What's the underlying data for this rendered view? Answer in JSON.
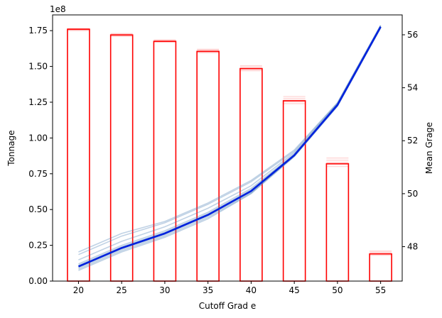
{
  "chart_data": {
    "type": "bar+line",
    "title": "",
    "xlabel": "Cutoff Grad e",
    "ylabel_left": "Tonnage",
    "ylabel_right": "Mean Grage",
    "y_left_offset_label": "1e8",
    "categories": [
      20,
      25,
      30,
      35,
      40,
      45,
      50,
      55
    ],
    "xlim": [
      17,
      57.5
    ],
    "y_left": {
      "lim": [
        0,
        1.86
      ],
      "ticks": [
        0.0,
        0.25,
        0.5,
        0.75,
        1.0,
        1.25,
        1.5,
        1.75
      ],
      "tick_labels": [
        "0.00",
        "0.25",
        "0.50",
        "0.75",
        "1.00",
        "1.25",
        "1.50",
        "1.75"
      ]
    },
    "y_right": {
      "lim": [
        46.7,
        56.75
      ],
      "ticks": [
        48,
        50,
        52,
        54,
        56
      ],
      "tick_labels": [
        "48",
        "50",
        "52",
        "54",
        "56"
      ]
    },
    "tonnage_series": {
      "name": "",
      "color": "#ff0000",
      "bar_style": "outline",
      "values": [
        1.76,
        1.72,
        1.675,
        1.605,
        1.485,
        1.26,
        0.82,
        0.19
      ],
      "realization_spread": [
        [
          1.75,
          1.765
        ],
        [
          1.71,
          1.73
        ],
        [
          1.67,
          1.685
        ],
        [
          1.595,
          1.62
        ],
        [
          1.47,
          1.505
        ],
        [
          1.24,
          1.29
        ],
        [
          0.8,
          0.86
        ],
        [
          0.18,
          0.21
        ]
      ]
    },
    "grade_series": {
      "name": "",
      "color": "#0022dd",
      "values": [
        47.25,
        47.95,
        48.5,
        49.2,
        50.1,
        51.45,
        53.35,
        56.3
      ],
      "realization_color": "#4a7fb5",
      "realizations": [
        [
          47.1,
          47.8,
          48.35,
          49.05,
          50.0,
          51.4,
          53.3,
          56.25
        ],
        [
          47.2,
          47.9,
          48.45,
          49.15,
          50.05,
          51.42,
          53.33,
          56.28
        ],
        [
          47.35,
          48.05,
          48.6,
          49.3,
          50.2,
          51.5,
          53.38,
          56.32
        ],
        [
          47.5,
          48.2,
          48.75,
          49.45,
          50.3,
          51.55,
          53.4,
          56.33
        ],
        [
          47.7,
          48.4,
          48.9,
          49.6,
          50.45,
          51.6,
          53.42,
          56.35
        ],
        [
          47.8,
          48.5,
          48.95,
          49.65,
          50.5,
          51.65,
          53.44,
          56.36
        ],
        [
          47.3,
          48.0,
          48.55,
          49.25,
          50.15,
          51.47,
          53.36,
          56.3
        ],
        [
          47.15,
          47.85,
          48.4,
          49.1,
          50.02,
          51.43,
          53.32,
          56.27
        ]
      ]
    },
    "grid": false,
    "legend": "none"
  }
}
